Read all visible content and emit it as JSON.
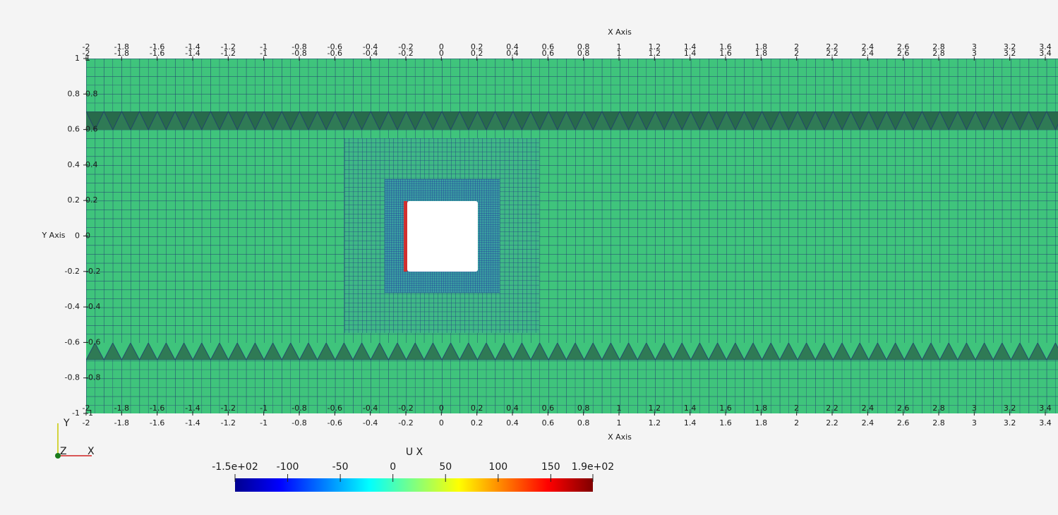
{
  "x_axis": {
    "title": "X Axis",
    "lim": [
      -2,
      3.4
    ],
    "ticks": [
      -2,
      -1.8,
      -1.6,
      -1.4,
      -1.2,
      -1,
      -0.8,
      -0.6,
      -0.4,
      -0.2,
      0,
      0.2,
      0.4,
      0.6,
      0.8,
      1,
      1.2,
      1.4,
      1.6,
      1.8,
      2,
      2.2,
      2.4,
      2.6,
      2.8,
      3,
      3.2,
      3.4
    ]
  },
  "y_axis": {
    "title": "Y Axis",
    "lim": [
      -1,
      1
    ],
    "ticks": [
      -1,
      -0.8,
      -0.6,
      -0.4,
      -0.2,
      0,
      0.2,
      0.4,
      0.6,
      0.8,
      1
    ]
  },
  "colorbar": {
    "title": "U X",
    "lim": [
      -150,
      190
    ],
    "ticks": [
      {
        "value": -150,
        "label": "-1.5e+02"
      },
      -100,
      -50,
      0,
      50,
      100,
      150,
      {
        "value": 190,
        "label": "1.9e+02"
      }
    ]
  },
  "orientation": {
    "labels": [
      "Y",
      "Z",
      "X"
    ]
  }
}
